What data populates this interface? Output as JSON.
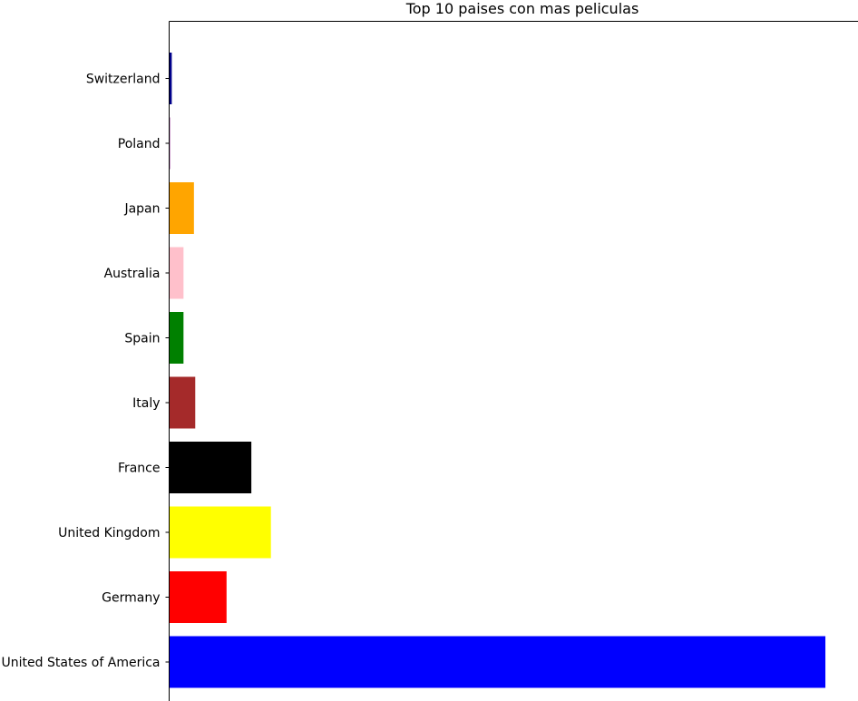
{
  "chart_data": {
    "type": "bar",
    "orientation": "horizontal",
    "title": "Top 10 paises con mas peliculas",
    "xlabel": "",
    "ylabel": "",
    "x_ticks_visible": false,
    "grid": false,
    "legend": "none",
    "xlim": [
      0,
      2640
    ],
    "categories": [
      "United States of America",
      "Germany",
      "United Kingdom",
      "France",
      "Italy",
      "Spain",
      "Australia",
      "Japan",
      "Poland",
      "Switzerland"
    ],
    "values": [
      2515,
      220,
      390,
      315,
      100,
      55,
      55,
      95,
      3,
      10
    ],
    "colors": [
      "#0000ff",
      "#ff0000",
      "#ffff00",
      "#000000",
      "#a52a2a",
      "#008000",
      "#ffc0cb",
      "#ffa500",
      "#800080",
      "#00008b"
    ]
  }
}
